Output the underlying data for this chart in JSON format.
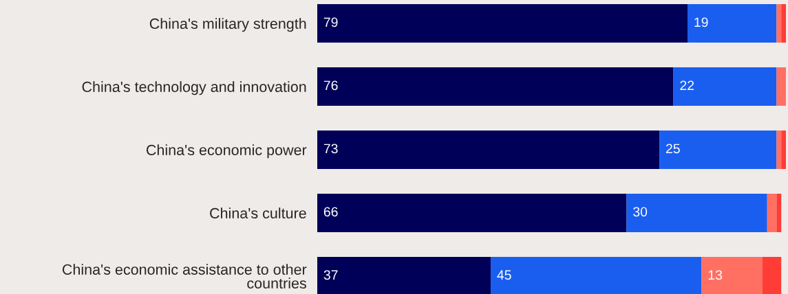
{
  "chart_data": {
    "type": "bar",
    "orientation": "horizontal",
    "stacked": true,
    "xlim": [
      0,
      100
    ],
    "tick_labels": "y",
    "grid": false,
    "legend": false,
    "categories": [
      "China's military strength",
      "China's technology and innovation",
      "China's economic power",
      "China's culture",
      "China's economic assistance to other\ncountries"
    ],
    "series": [
      {
        "color": "#000058",
        "values": [
          79,
          76,
          73,
          66,
          37
        ],
        "value_labels": [
          "79",
          "76",
          "73",
          "66",
          "37"
        ]
      },
      {
        "color": "#1a5ef0",
        "values": [
          19,
          22,
          25,
          30,
          45
        ],
        "value_labels": [
          "19",
          "22",
          "25",
          "30",
          "45"
        ]
      },
      {
        "color": "#ff7063",
        "values": [
          1,
          2,
          1,
          2,
          13
        ],
        "value_labels": [
          null,
          null,
          null,
          null,
          "13"
        ]
      },
      {
        "color": "#ff3c36",
        "values": [
          1,
          0,
          1,
          1,
          4
        ],
        "value_labels": [
          null,
          null,
          null,
          null,
          null
        ]
      }
    ]
  }
}
